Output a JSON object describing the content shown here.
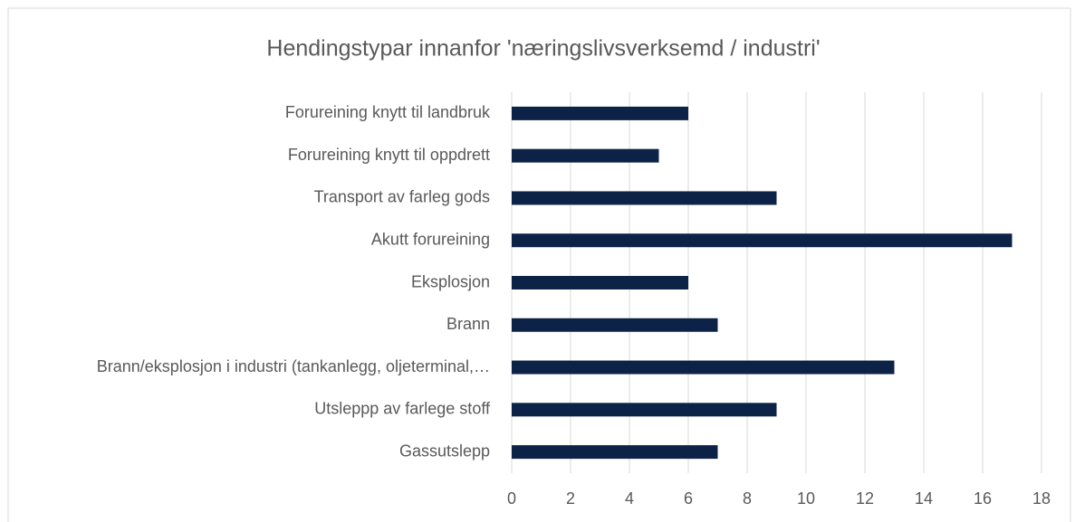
{
  "chart_data": {
    "type": "bar",
    "orientation": "horizontal",
    "title": "Hendingstypar innanfor 'næringslivsverksemd / industri'",
    "categories": [
      "Forureining knytt til landbruk",
      "Forureining knytt til oppdrett",
      "Transport av farleg gods",
      "Akutt forureining",
      "Eksplosjon",
      "Brann",
      "Brann/eksplosjon i industri (tankanlegg, oljeterminal,…",
      "Utsleppp av farlege stoff",
      "Gassutslepp"
    ],
    "values": [
      6,
      5,
      9,
      17,
      6,
      7,
      13,
      9,
      7
    ],
    "color": "#0c2347",
    "xlim": [
      0,
      18
    ],
    "xticks": [
      0,
      2,
      4,
      6,
      8,
      10,
      12,
      14,
      16,
      18
    ],
    "grid": true
  }
}
